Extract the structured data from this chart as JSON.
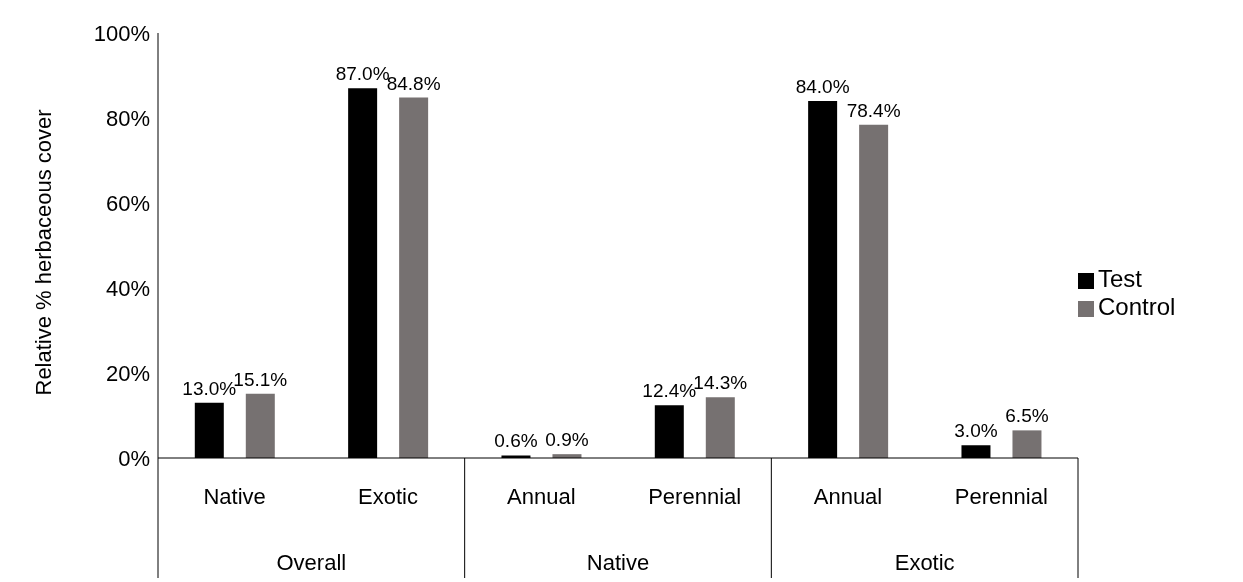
{
  "chart_data": {
    "type": "bar",
    "ylabel": "Relative % herbaceous cover",
    "categories": [
      "Native",
      "Exotic",
      "Annual",
      "Perennial",
      "Annual",
      "Perennial"
    ],
    "series": [
      {
        "name": "Test",
        "color": "#000000",
        "values": [
          13.0,
          87.0,
          0.6,
          12.4,
          84.0,
          3.0
        ],
        "value_labels": [
          "13.0%",
          "87.0%",
          "0.6%",
          "12.4%",
          "84.0%",
          "3.0%"
        ]
      },
      {
        "name": "Control",
        "color": "#767171",
        "values": [
          15.1,
          84.8,
          0.9,
          14.3,
          78.4,
          6.5
        ],
        "value_labels": [
          "15.1%",
          "84.8%",
          "0.9%",
          "14.3%",
          "78.4%",
          "6.5%"
        ]
      }
    ],
    "annotations": [
      "Overall",
      "Native",
      "Exotic"
    ],
    "ylim": [
      0,
      100
    ],
    "yticks": [
      {
        "value": 0,
        "label": "0%"
      },
      {
        "value": 20,
        "label": "20%"
      },
      {
        "value": 40,
        "label": "40%"
      },
      {
        "value": 60,
        "label": "60%"
      },
      {
        "value": 80,
        "label": "80%"
      },
      {
        "value": 100,
        "label": "100%"
      }
    ],
    "grid": false,
    "legend": "right"
  }
}
